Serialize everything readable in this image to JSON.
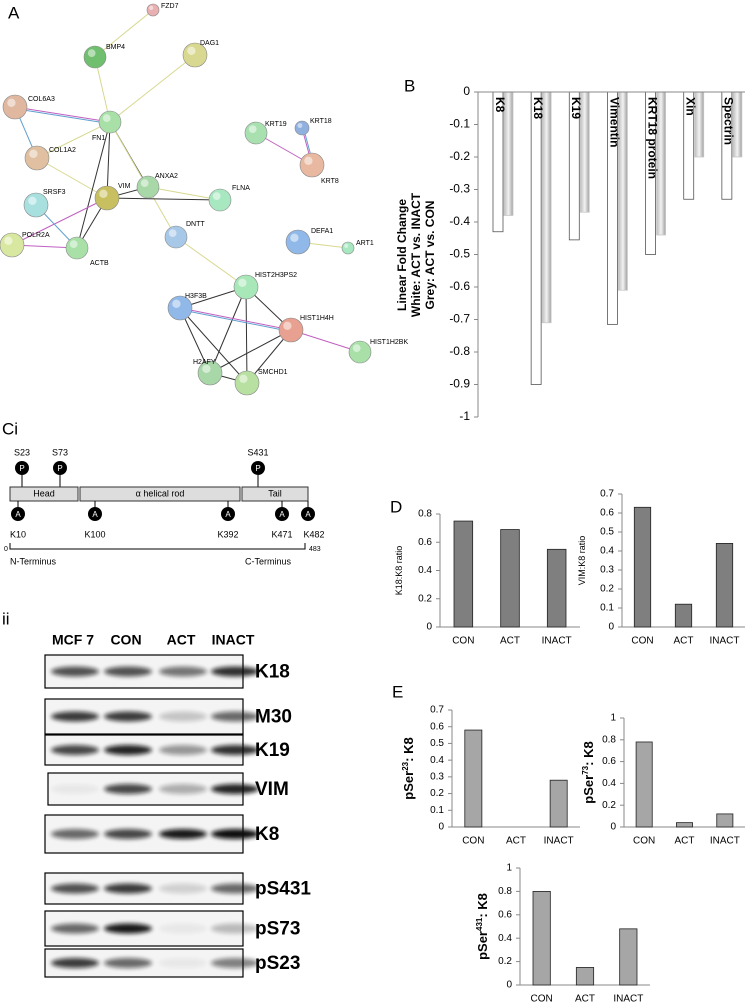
{
  "panel_labels": [
    "A",
    "B",
    "Ci",
    "ii",
    "D",
    "E"
  ],
  "network": {
    "nodes": [
      "FZD7",
      "BMP4",
      "DAG1",
      "COL6A3",
      "FN1",
      "KRT19",
      "KRT18",
      "COL1A2",
      "ANXA2",
      "KRT8",
      "SRSF3",
      "FLNA",
      "VIM",
      "POLR2A",
      "DEFA1",
      "ART1",
      "DNTT",
      "ACTB",
      "HIST2H3PS2",
      "H3F3B",
      "HIST1H4H",
      "HIST1H2BK",
      "H2AFY",
      "SMCHD1"
    ]
  },
  "domain_diagram": {
    "phospho_sites": [
      "S23",
      "S73",
      "S431"
    ],
    "phospho_symbol": "P",
    "regions": [
      "Head",
      "α helical rod",
      "Tail"
    ],
    "acetyl_symbol": "A",
    "acetyl_sites": [
      "K10",
      "K100",
      "K392",
      "K471",
      "K482"
    ],
    "start": 0,
    "end": 483,
    "n_terminus": "N-Terminus",
    "c_terminus": "C-Terminus"
  },
  "blot": {
    "lanes": [
      "MCF 7",
      "CON",
      "ACT",
      "INACT"
    ],
    "bands": [
      "K18",
      "M30",
      "K19",
      "VIM",
      "K8",
      "pS431",
      "pS73",
      "pS23"
    ]
  },
  "chart_data": [
    {
      "type": "grouped_bar",
      "y_label": [
        "Linear Fold Change",
        "White: ACT vs. INACT",
        "Grey: ACT vs. CON"
      ],
      "categories": [
        "K8",
        "K18",
        "K19",
        "Vimentin",
        "KRT18 protein",
        "Xin",
        "Spectrin"
      ],
      "series": [
        {
          "color": "#ffffff",
          "values": [
            -0.43,
            -0.9,
            -0.455,
            -0.715,
            -0.5,
            -0.33,
            -0.33
          ]
        },
        {
          "color": "#c8c8c8",
          "values": [
            -0.38,
            -0.71,
            -0.37,
            -0.61,
            -0.44,
            -0.2,
            -0.2
          ]
        }
      ],
      "ylim": [
        -1,
        0
      ],
      "yticks": [
        0,
        -0.1,
        -0.2,
        -0.3,
        -0.4,
        -0.5,
        -0.6,
        -0.7,
        -0.8,
        -0.9,
        -1
      ]
    },
    {
      "type": "bar",
      "y_label": [
        "K18:K8 ratio"
      ],
      "categories": [
        "CON",
        "ACT",
        "INACT"
      ],
      "values": [
        0.75,
        0.69,
        0.55
      ],
      "color": "#7f7f7f",
      "ylim": [
        0,
        0.8
      ],
      "yticks": [
        0,
        0.2,
        0.4,
        0.6,
        0.8
      ]
    },
    {
      "type": "bar",
      "y_label": [
        "VIM:K8 ratio"
      ],
      "categories": [
        "CON",
        "ACT",
        "INACT"
      ],
      "values": [
        0.63,
        0.12,
        0.44
      ],
      "color": "#7f7f7f",
      "ylim": [
        0,
        0.7
      ],
      "yticks": [
        0,
        0.1,
        0.2,
        0.3,
        0.4,
        0.5,
        0.6,
        0.7
      ]
    },
    {
      "type": "bar",
      "y_label": [
        "pSer",
        "23",
        ": K8"
      ],
      "categories": [
        "CON",
        "ACT",
        "INACT"
      ],
      "values": [
        0.58,
        0,
        0.28
      ],
      "color": "#a6a6a6",
      "ylim": [
        0,
        0.7
      ],
      "yticks": [
        0,
        0.1,
        0.2,
        0.3,
        0.4,
        0.5,
        0.6,
        0.7
      ]
    },
    {
      "type": "bar",
      "y_label": [
        "pSer",
        "73",
        ": K8"
      ],
      "categories": [
        "CON",
        "ACT",
        "INACT"
      ],
      "values": [
        0.78,
        0.04,
        0.12
      ],
      "color": "#a6a6a6",
      "ylim": [
        0,
        1
      ],
      "yticks": [
        0,
        0.2,
        0.4,
        0.6,
        0.8,
        1
      ]
    },
    {
      "type": "bar",
      "y_label": [
        "pSer",
        "431",
        ": K8"
      ],
      "categories": [
        "CON",
        "ACT",
        "INACT"
      ],
      "values": [
        0.8,
        0.15,
        0.48
      ],
      "color": "#a6a6a6",
      "ylim": [
        0,
        1
      ],
      "yticks": [
        0,
        0.2,
        0.4,
        0.6,
        0.8,
        1
      ]
    }
  ]
}
